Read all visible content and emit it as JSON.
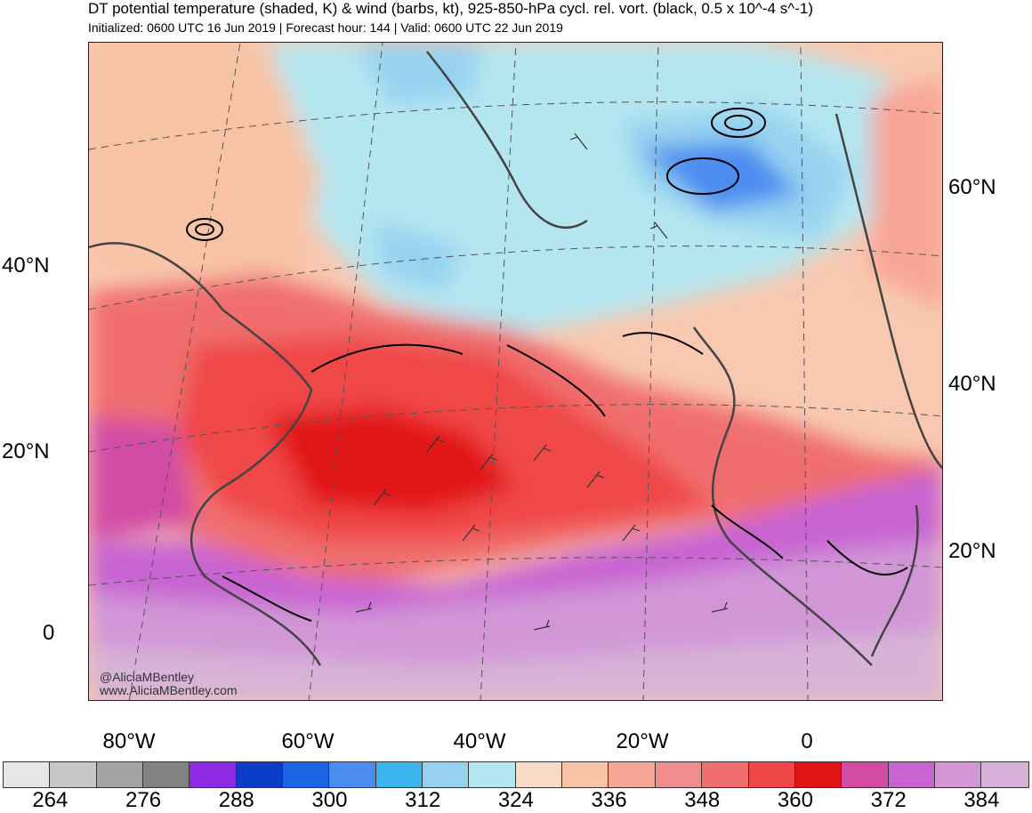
{
  "title": "DT potential temperature (shaded, K) & wind (barbs, kt), 925-850-hPa cycl. rel. vort. (black, 0.5 x 10^-4 s^-1)",
  "subtitle": "Initialized: 0600 UTC 16 Jun 2019 | Forecast hour: 144 | Valid: 0600 UTC 22 Jun 2019",
  "left_lat_labels": [
    "40°N",
    "20°N",
    "0"
  ],
  "right_lat_labels": [
    "60°N",
    "40°N",
    "20°N"
  ],
  "lon_labels": [
    "80°W",
    "60°W",
    "40°W",
    "20°W",
    "0"
  ],
  "watermark": {
    "handle": "@AliciaMBentley",
    "site": "www.AliciaMBentley.com"
  },
  "colorbar": {
    "colors": [
      "#e6e6e6",
      "#c7c7c7",
      "#a4a4a4",
      "#828282",
      "#8b2be2",
      "#0a3cc8",
      "#1e64e6",
      "#4c8cf0",
      "#3cb4f0",
      "#96d2f0",
      "#b4e6f0",
      "#f8dcc8",
      "#f8c3a5",
      "#f8a596",
      "#f08c8c",
      "#f06e6e",
      "#f04646",
      "#e11414",
      "#d24ba5",
      "#c864d2",
      "#d296d7",
      "#d7b4d7"
    ],
    "labels": [
      "264",
      "276",
      "288",
      "300",
      "312",
      "324",
      "336",
      "348",
      "360",
      "372",
      "384"
    ]
  }
}
